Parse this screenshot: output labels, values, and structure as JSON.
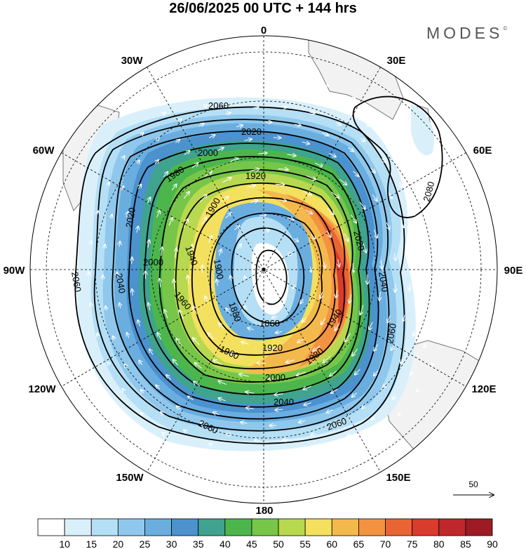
{
  "title": "26/06/2025  00 UTC  + 144 hrs",
  "brand": {
    "name": "MODES",
    "mark": "©"
  },
  "longitude_labels": {
    "l0": "0",
    "l30e": "30E",
    "l60e": "60E",
    "l90e": "90E",
    "l120e": "120E",
    "l150e": "150E",
    "l180": "180",
    "l150w": "150W",
    "l120w": "120W",
    "l90w": "90W",
    "l60w": "60W",
    "l30w": "30W"
  },
  "contour_labels": {
    "c2060a": "2060",
    "c2020a": "2020",
    "c2000a": "2000",
    "c1980a": "1980",
    "c1920a": "1920",
    "c1900a": "1900",
    "c1940a": "1940",
    "c1900b": "1900",
    "c1880a": "1880",
    "c2020b": "2020",
    "c2000b": "2000",
    "c2060b": "2060",
    "c2040a": "2040",
    "c1960a": "1960",
    "c2020c": "2020",
    "c2040b": "2040",
    "c2080": "2080",
    "c1940b": "1940",
    "c1860": "1860",
    "c1960b": "1960",
    "c1920b": "1920",
    "c1980b": "1980",
    "c2000c": "2000",
    "c2060c": "2060",
    "c2040c": "2040",
    "c2060d": "2060"
  },
  "wind_reference": {
    "value": "50"
  },
  "colorbar": {
    "labels": [
      "10",
      "15",
      "20",
      "25",
      "30",
      "35",
      "40",
      "45",
      "50",
      "55",
      "60",
      "65",
      "70",
      "75",
      "80",
      "85",
      "90"
    ],
    "colors": [
      "#ffffff",
      "#d9f0fb",
      "#b5dff5",
      "#8fc8ec",
      "#6aaee0",
      "#4b92cf",
      "#3fa38f",
      "#4cb64c",
      "#77c64a",
      "#b8d94f",
      "#f3e05e",
      "#f4b94d",
      "#f39342",
      "#ea6534",
      "#d93b2c",
      "#c0272d",
      "#9c1b25"
    ]
  },
  "colors": {
    "land": "#f2f2f2",
    "coast": "#777777",
    "contour": "#000000",
    "grid": "#000000"
  }
}
